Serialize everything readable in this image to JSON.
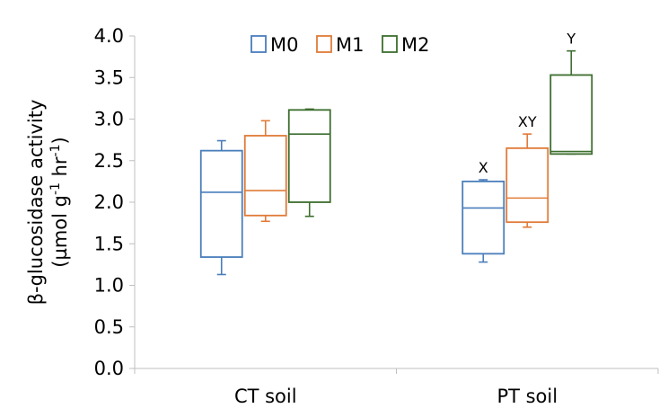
{
  "chart_data": {
    "type": "box",
    "categories": [
      "CT soil",
      "PT soil"
    ],
    "ylabel_line1": "β-glucosidase activity",
    "ylabel_line2_parts": [
      "(µmol g",
      "-1",
      " hr",
      "-1",
      ")"
    ],
    "ylim": [
      0.0,
      4.0
    ],
    "yticks": [
      "0.0",
      "0.5",
      "1.0",
      "1.5",
      "2.0",
      "2.5",
      "3.0",
      "3.5",
      "4.0"
    ],
    "grid": false,
    "legend_position": "top-center",
    "series": [
      {
        "name": "M0",
        "color": "#4a7ebb",
        "boxes": [
          {
            "min": 1.13,
            "q1": 1.34,
            "median": 2.12,
            "q3": 2.62,
            "max": 2.74
          },
          {
            "min": 1.28,
            "q1": 1.38,
            "median": 1.93,
            "q3": 2.25,
            "max": 2.27
          }
        ]
      },
      {
        "name": "M1",
        "color": "#e07b39",
        "boxes": [
          {
            "min": 1.77,
            "q1": 1.84,
            "median": 2.14,
            "q3": 2.8,
            "max": 2.98
          },
          {
            "min": 1.7,
            "q1": 1.76,
            "median": 2.05,
            "q3": 2.65,
            "max": 2.82
          }
        ]
      },
      {
        "name": "M2",
        "color": "#3c6e2e",
        "boxes": [
          {
            "min": 1.83,
            "q1": 2.0,
            "median": 2.82,
            "q3": 3.11,
            "max": 3.12
          },
          {
            "min": 2.58,
            "q1": 2.58,
            "median": 2.61,
            "q3": 3.53,
            "max": 3.82
          }
        ]
      }
    ],
    "annotations": [
      {
        "category": 1,
        "series": 0,
        "text": "X"
      },
      {
        "category": 1,
        "series": 1,
        "text": "XY"
      },
      {
        "category": 1,
        "series": 2,
        "text": "Y"
      }
    ]
  }
}
